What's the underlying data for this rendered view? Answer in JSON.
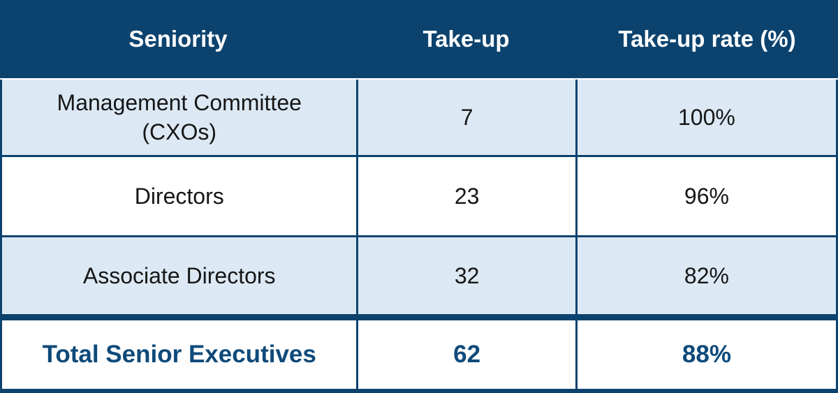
{
  "table": {
    "columns": [
      {
        "label": "Seniority"
      },
      {
        "label": "Take-up"
      },
      {
        "label": "Take-up rate (%)"
      }
    ],
    "rows": [
      {
        "seniority": "Management Committee (CXOs)",
        "take_up": "7",
        "rate": "100%"
      },
      {
        "seniority": "Directors",
        "take_up": "23",
        "rate": "96%"
      },
      {
        "seniority": "Associate Directors",
        "take_up": "32",
        "rate": "82%"
      }
    ],
    "total_row": {
      "seniority": "Total Senior Executives",
      "take_up": "62",
      "rate": "88%"
    }
  },
  "colors": {
    "header_navy": "#0c436e",
    "border_navy": "#0c436e",
    "row_light_blue": "#dce9f4",
    "row_white": "#ffffff",
    "header_text": "#ffffff",
    "body_text": "#161616",
    "total_text": "#0e4a7a"
  },
  "chart_data": {
    "type": "table",
    "title": "",
    "columns": [
      "Seniority",
      "Take-up",
      "Take-up rate (%)"
    ],
    "rows": [
      [
        "Management Committee (CXOs)",
        7,
        "100%"
      ],
      [
        "Directors",
        23,
        "96%"
      ],
      [
        "Associate Directors",
        32,
        "82%"
      ],
      [
        "Total Senior Executives",
        62,
        "88%"
      ]
    ],
    "notes": "Totals row emphasized in bold navy; body rows alternate light blue and white."
  }
}
